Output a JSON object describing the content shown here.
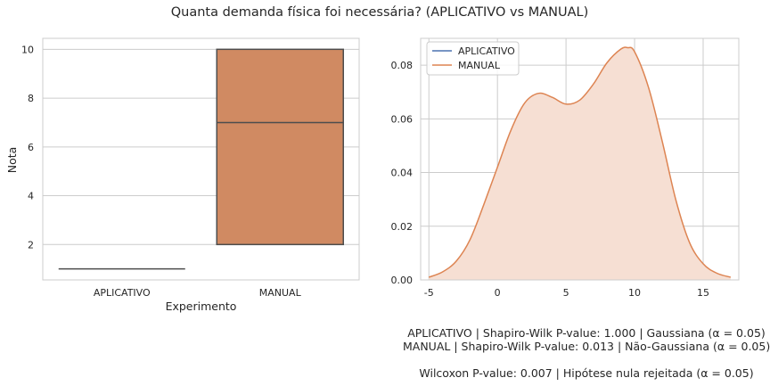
{
  "title": "Quanta demanda física foi necessária? (APLICATIVO vs MANUAL)",
  "colors": {
    "aplicativo": "#4c72b0",
    "manual": "#dd8452",
    "manual_box": "#d08a62",
    "manual_fill": "#f6dfd3",
    "grid": "#cccccc",
    "axes_edge": "#cccccc",
    "text": "#262626",
    "whisker": "#4d4d4d"
  },
  "chart_data": [
    {
      "type": "box",
      "xlabel": "Experimento",
      "ylabel": "Nota",
      "categories": [
        "APLICATIVO",
        "MANUAL"
      ],
      "ylim": [
        0.55,
        10.45
      ],
      "yticks": [
        2,
        4,
        6,
        8,
        10
      ],
      "grid": true,
      "boxes": [
        {
          "name": "APLICATIVO",
          "q1": 1,
          "median": 1,
          "q3": 1,
          "whislo": 1,
          "whishi": 1
        },
        {
          "name": "MANUAL",
          "q1": 2,
          "median": 7,
          "q3": 10,
          "whislo": 2,
          "whishi": 10
        }
      ]
    },
    {
      "type": "area",
      "xlabel": "",
      "ylabel": "",
      "xlim": [
        -5.6,
        17.6
      ],
      "ylim": [
        0,
        0.09
      ],
      "xticks": [
        -5,
        0,
        5,
        10,
        15
      ],
      "yticks": [
        0.0,
        0.02,
        0.04,
        0.06,
        0.08
      ],
      "ytick_labels": [
        "0.00",
        "0.02",
        "0.04",
        "0.06",
        "0.08"
      ],
      "grid": true,
      "legend": "top-left",
      "series": [
        {
          "name": "APLICATIVO",
          "x": [],
          "y": []
        },
        {
          "name": "MANUAL",
          "filled": true,
          "x": [
            -5.0,
            -4.0,
            -3.0,
            -2.0,
            -1.0,
            0.0,
            1.0,
            2.0,
            3.0,
            4.0,
            5.0,
            6.0,
            7.0,
            8.0,
            9.0,
            9.5,
            10.0,
            11.0,
            12.0,
            13.0,
            14.0,
            15.0,
            16.0,
            17.0
          ],
          "y": [
            0.001,
            0.003,
            0.007,
            0.015,
            0.028,
            0.042,
            0.056,
            0.066,
            0.0695,
            0.068,
            0.0655,
            0.067,
            0.073,
            0.081,
            0.086,
            0.0865,
            0.085,
            0.072,
            0.052,
            0.03,
            0.014,
            0.006,
            0.0025,
            0.001
          ]
        }
      ]
    }
  ],
  "stats": {
    "line1": "APLICATIVO | Shapiro-Wilk P-value: 1.000 | Gaussiana (α = 0.05)",
    "line2": "MANUAL | Shapiro-Wilk P-value: 0.013 | Não-Gaussiana (α = 0.05)",
    "line3": "Wilcoxon P-value: 0.007 | Hipótese nula rejeitada (α = 0.05)"
  }
}
